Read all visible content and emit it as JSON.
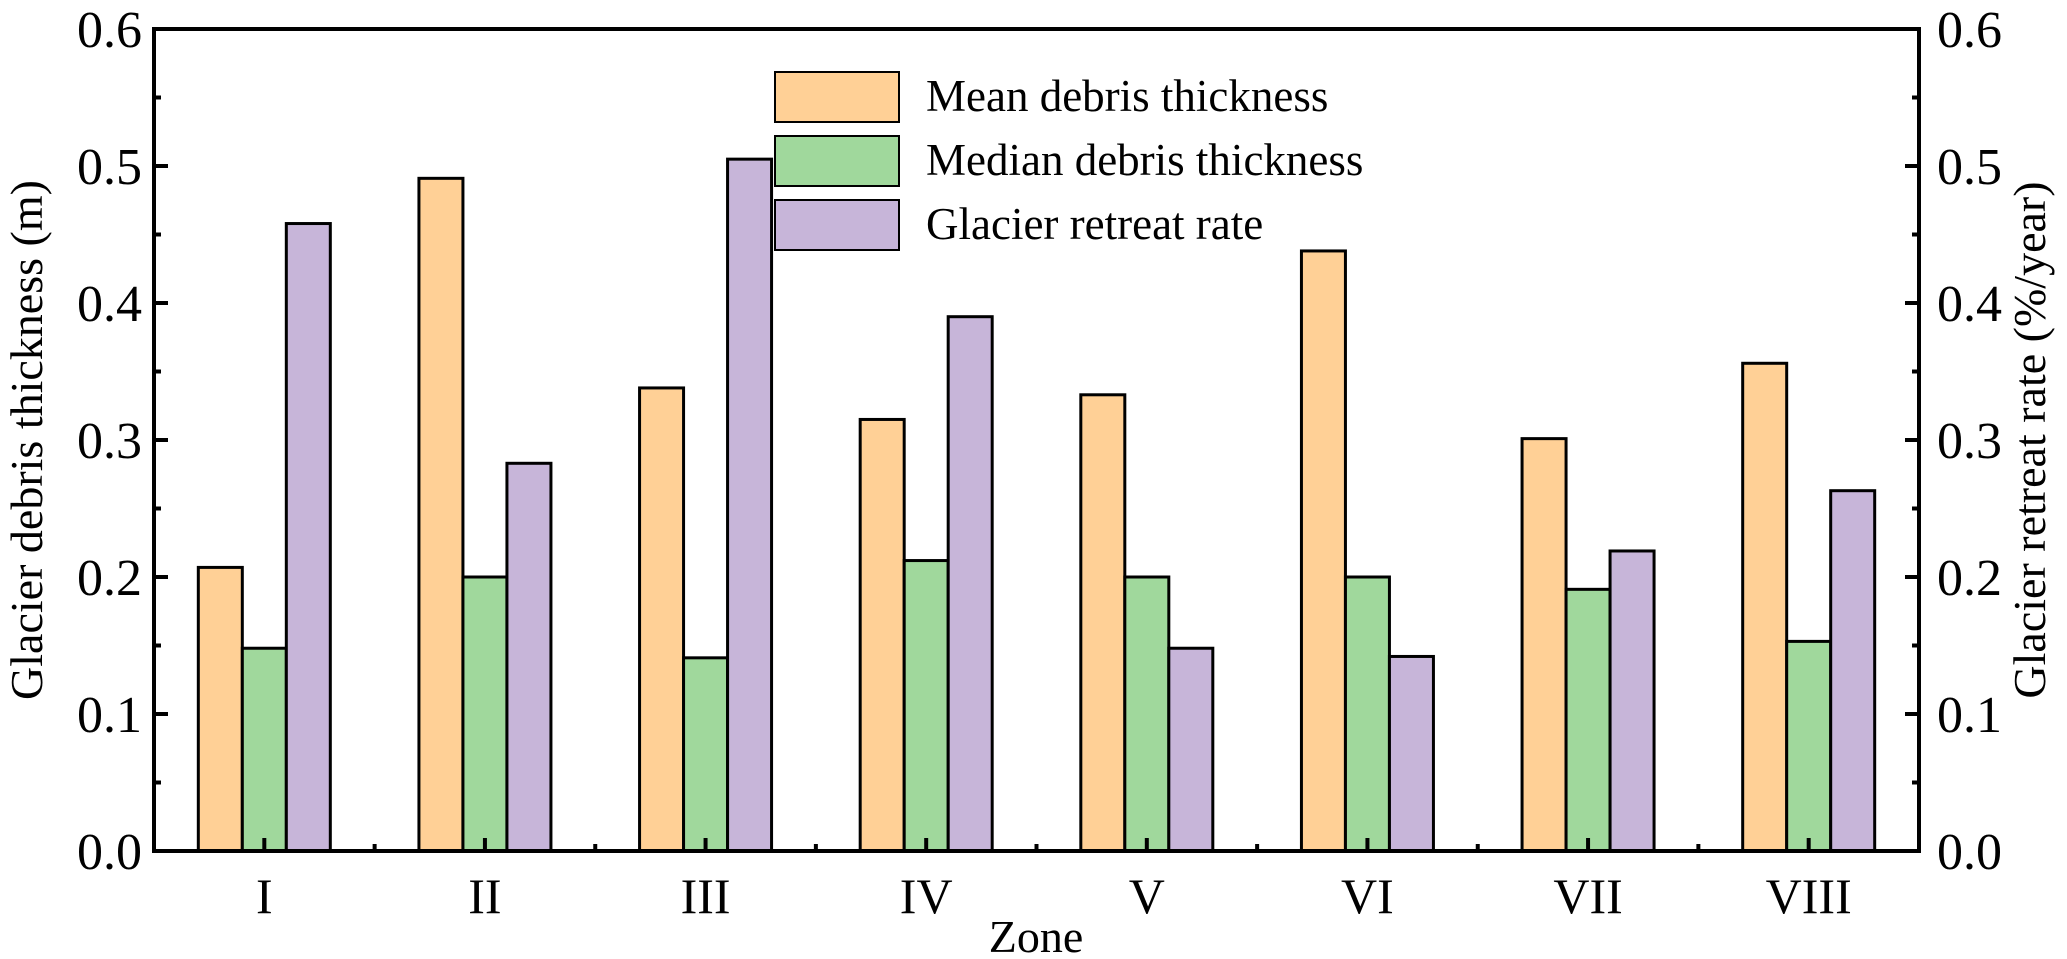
{
  "chart_data": {
    "type": "bar",
    "xlabel": "Zone",
    "ylabel": "Glacier debris thickness (m)",
    "y2label": "Glacier retreat rate (%/year)",
    "categories": [
      "I",
      "II",
      "III",
      "IV",
      "V",
      "VI",
      "VII",
      "VIII"
    ],
    "ylim": [
      0,
      0.6
    ],
    "y2lim": [
      0,
      0.6
    ],
    "yticks": [
      "0.0",
      "0.1",
      "0.2",
      "0.3",
      "0.4",
      "0.5",
      "0.6"
    ],
    "legend_position": "top-center",
    "series": [
      {
        "name": "Mean debris thickness",
        "axis": "left",
        "color": "#FFD096",
        "values": [
          0.207,
          0.491,
          0.338,
          0.315,
          0.333,
          0.438,
          0.301,
          0.356
        ]
      },
      {
        "name": "Median debris thickness",
        "axis": "left",
        "color": "#A0D89C",
        "values": [
          0.148,
          0.2,
          0.141,
          0.212,
          0.2,
          0.2,
          0.191,
          0.153
        ]
      },
      {
        "name": "Glacier retreat rate",
        "axis": "right",
        "color": "#C7B5D9",
        "values": [
          0.458,
          0.283,
          0.505,
          0.39,
          0.148,
          0.142,
          0.219,
          0.263
        ]
      }
    ]
  }
}
